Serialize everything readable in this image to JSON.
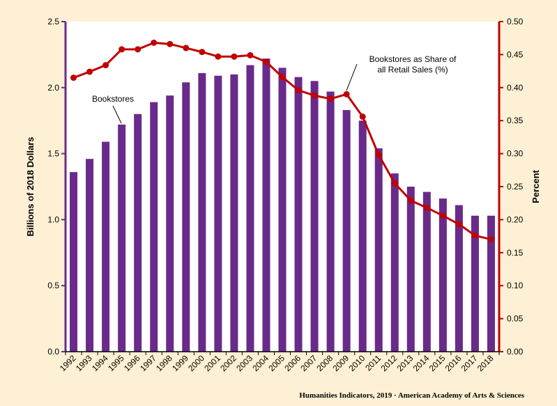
{
  "chart_data": {
    "type": "bar",
    "categories": [
      "1992",
      "1993",
      "1994",
      "1995",
      "1996",
      "1997",
      "1998",
      "1999",
      "2000",
      "2001",
      "2002",
      "2003",
      "2004",
      "2005",
      "2006",
      "2007",
      "2008",
      "2009",
      "2010",
      "2011",
      "2012",
      "2013",
      "2014",
      "2015",
      "2016",
      "2017",
      "2018"
    ],
    "series": [
      {
        "name": "Bookstores",
        "type": "bar",
        "axis": "left",
        "color": "#6a2a8a",
        "values": [
          1.36,
          1.46,
          1.59,
          1.72,
          1.8,
          1.89,
          1.94,
          2.04,
          2.11,
          2.09,
          2.1,
          2.17,
          2.22,
          2.15,
          2.08,
          2.05,
          1.97,
          1.83,
          1.75,
          1.54,
          1.35,
          1.25,
          1.21,
          1.16,
          1.11,
          1.03,
          1.03
        ]
      },
      {
        "name": "Bookstores as Share of all Retail Sales (%)",
        "type": "line",
        "axis": "right",
        "color": "#c00000",
        "values": [
          0.415,
          0.424,
          0.434,
          0.458,
          0.458,
          0.468,
          0.466,
          0.46,
          0.454,
          0.447,
          0.447,
          0.449,
          0.439,
          0.416,
          0.396,
          0.388,
          0.383,
          0.39,
          0.356,
          0.298,
          0.255,
          0.229,
          0.218,
          0.206,
          0.193,
          0.176,
          0.17
        ]
      }
    ],
    "y_left": {
      "label": "Billions of 2018 Dollars",
      "range": [
        0,
        2.5
      ],
      "ticks": [
        "0.0",
        "0.5",
        "1.0",
        "1.5",
        "2.0",
        "2.5"
      ]
    },
    "y_right": {
      "label": "Percent",
      "range": [
        0,
        0.5
      ],
      "ticks": [
        "0.00",
        "0.05",
        "0.10",
        "0.15",
        "0.20",
        "0.25",
        "0.30",
        "0.35",
        "0.40",
        "0.45",
        "0.50"
      ]
    },
    "annotations": {
      "bars": "Bookstores",
      "line_1": "Bookstores as Share of",
      "line_2": "all Retail Sales (%)"
    },
    "grid": false,
    "axis_colors": {
      "left": "#6a2a8a",
      "right": "#c00000"
    }
  },
  "credit": "Humanities Indicators, 2019 · American Academy of Arts & Sciences",
  "colors": {
    "background": "#fdf0d4",
    "plot_background": "#ffffff"
  }
}
